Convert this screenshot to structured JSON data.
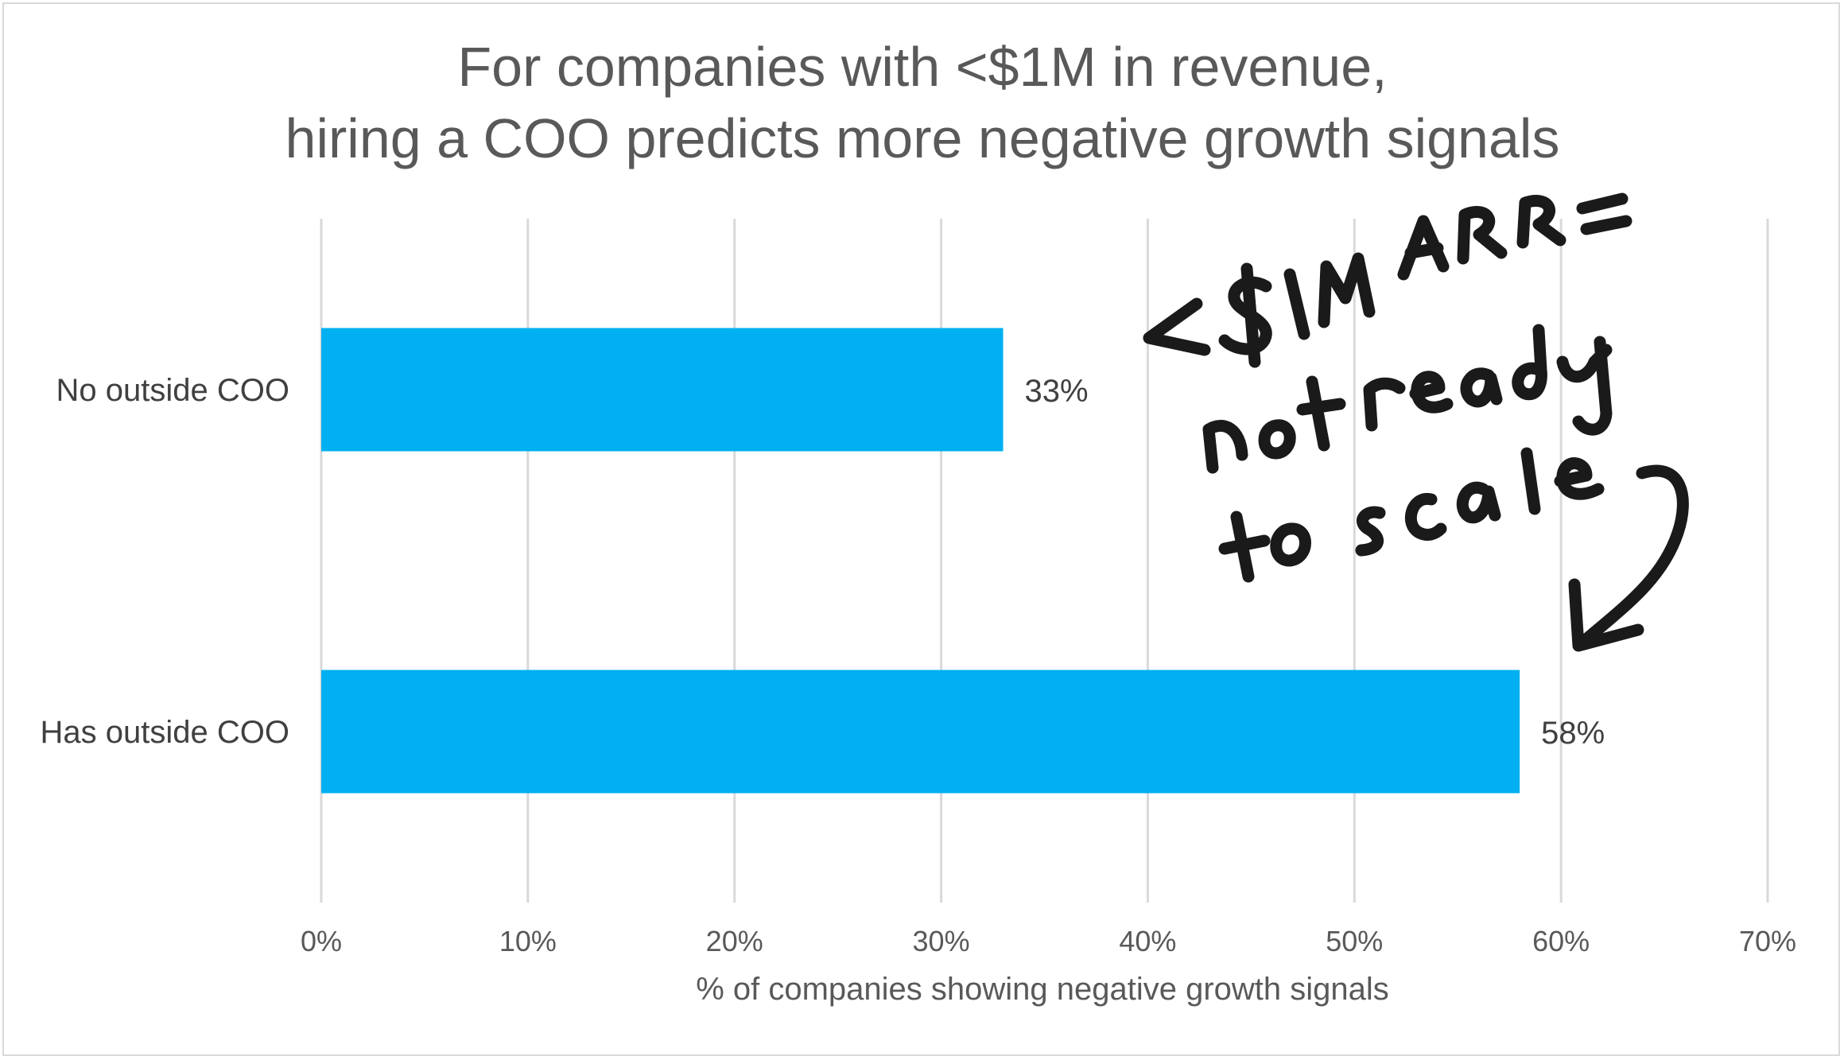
{
  "chart_data": {
    "type": "bar",
    "orientation": "horizontal",
    "title_lines": [
      "For companies with <$1M in revenue,",
      "hiring a COO predicts more negative growth signals"
    ],
    "categories": [
      "No outside COO",
      "Has outside COO"
    ],
    "values": [
      33,
      58
    ],
    "data_labels": [
      "33%",
      "58%"
    ],
    "xlabel": "% of companies showing negative growth signals",
    "ylabel": "",
    "xlim": [
      0,
      70
    ],
    "x_ticks": [
      0,
      10,
      20,
      30,
      40,
      50,
      60,
      70
    ],
    "x_tick_labels": [
      "0%",
      "10%",
      "20%",
      "30%",
      "40%",
      "50%",
      "60%",
      "70%"
    ],
    "grid": true,
    "legend": "none",
    "bar_color": "#00b0f0",
    "annotation": {
      "handwritten_lines": [
        "<$1M ARR =",
        "not ready",
        "to scale"
      ],
      "points_to": "Has outside COO",
      "color": "#1a1a1a"
    }
  }
}
